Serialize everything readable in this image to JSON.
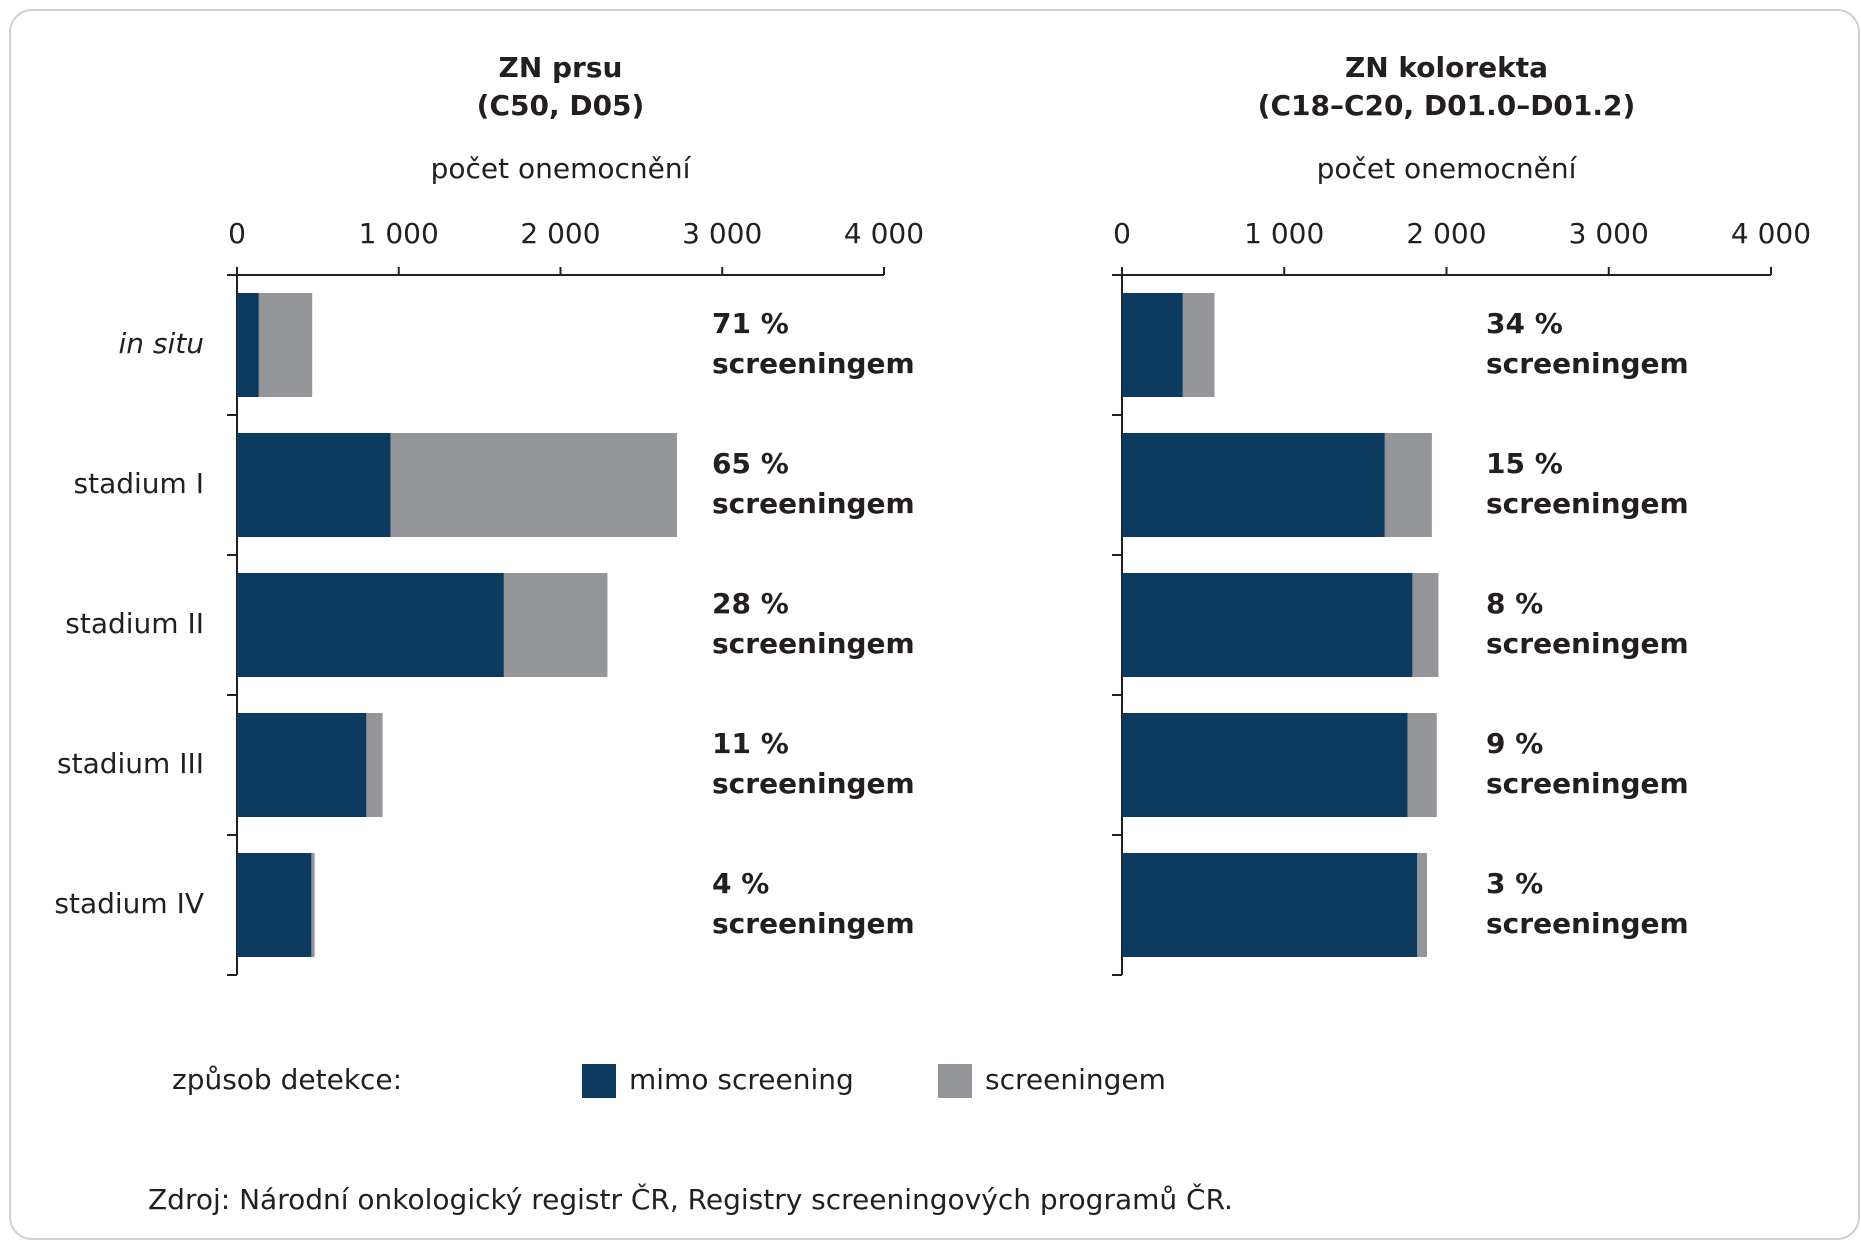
{
  "chart_data": [
    {
      "type": "bar",
      "orientation": "horizontal",
      "stacked": true,
      "title": "ZN prsu",
      "subtitle": "(C50, D05)",
      "xlabel": "počet onemocnění",
      "categories": [
        "in situ",
        "stadium I",
        "stadium II",
        "stadium III",
        "stadium IV"
      ],
      "series": [
        {
          "name": "mimo screening",
          "color": "#0d3a5f",
          "values": [
            135,
            950,
            1650,
            800,
            460
          ]
        },
        {
          "name": "screeningem",
          "color": "#939598",
          "values": [
            330,
            1770,
            640,
            100,
            20
          ]
        }
      ],
      "annotations": [
        [
          "71  %",
          "screeningem"
        ],
        [
          "65  %",
          "screeningem"
        ],
        [
          "28  %",
          "screeningem"
        ],
        [
          "11  %",
          "screeningem"
        ],
        [
          "4 %",
          "screeningem"
        ]
      ],
      "xlim": [
        0,
        4000
      ],
      "xticks": [
        0,
        {
          "value": 1000,
          "label": "1 000"
        },
        {
          "value": 2000,
          "label": "2 000"
        },
        {
          "value": 3000,
          "label": "3 000"
        },
        {
          "value": 4000,
          "label": "4 000"
        }
      ],
      "legend_title": "způsob detekce:"
    },
    {
      "type": "bar",
      "orientation": "horizontal",
      "stacked": true,
      "title": "ZN kolorekta",
      "subtitle": "(C18–C20, D01.0–D01.2)",
      "xlabel": "počet onemocnění",
      "categories": [
        null,
        null,
        null,
        null,
        null
      ],
      "series": [
        {
          "name": "mimo screening",
          "color": "#0d3a5f",
          "values": [
            375,
            1620,
            1790,
            1760,
            1820
          ]
        },
        {
          "name": "screeningem",
          "color": "#939598",
          "values": [
            195,
            290,
            160,
            180,
            60
          ]
        }
      ],
      "annotations": [
        [
          "34  %",
          "screeningem"
        ],
        [
          "15  %",
          "screeningem"
        ],
        [
          "8  %",
          "screeningem"
        ],
        [
          "9  %",
          "screeningem"
        ],
        [
          "3  %",
          "screeningem"
        ]
      ],
      "xlim": [
        0,
        4000
      ],
      "xticks": [
        0,
        {
          "value": 1000,
          "label": "1 000"
        },
        {
          "value": 2000,
          "label": "2 000"
        },
        {
          "value": 3000,
          "label": "3 000"
        },
        {
          "value": 4000,
          "label": "4 000"
        }
      ]
    }
  ],
  "source": "Zdroj: Národní onkologický registr ČR, Registry screeningových programů ČR."
}
